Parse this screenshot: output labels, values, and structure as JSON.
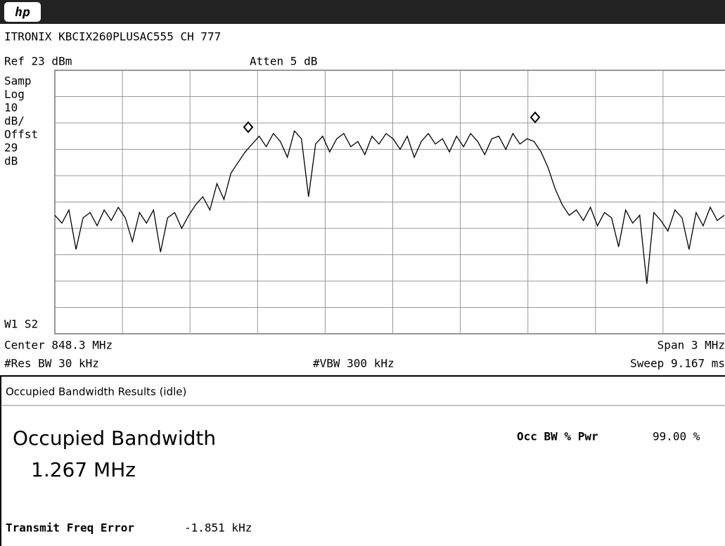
{
  "header": {
    "logo": "hp",
    "title": "ITRONIX KBCIX260PLUSAC555 CH 777"
  },
  "settings": {
    "ref": "Ref 23 dBm",
    "atten": "Atten 5 dB"
  },
  "side_labels": [
    "Samp",
    "Log",
    "10",
    "dB/",
    "Offst",
    "29",
    "dB"
  ],
  "trace_label": "W1  S2",
  "footer": {
    "center": "Center 848.3 MHz",
    "span": "Span 3 MHz",
    "rbw": "#Res BW 30 kHz",
    "vbw": "#VBW 300 kHz",
    "sweep": "Sweep 9.167 ms"
  },
  "trace": {
    "ylim": [
      -77,
      23
    ],
    "values": [
      -32,
      -35,
      -30,
      -45,
      -33,
      -31,
      -36,
      -30,
      -34,
      -29,
      -33,
      -42,
      -31,
      -35,
      -30,
      -46,
      -33,
      -31,
      -37,
      -32,
      -28,
      -25,
      -30,
      -20,
      -26,
      -16,
      -12,
      -8,
      -5,
      -2,
      -6,
      -1,
      -4,
      -10,
      0,
      -3,
      -25,
      -5,
      -2,
      -8,
      -3,
      -1,
      -6,
      -4,
      -9,
      -2,
      -5,
      -1,
      -3,
      -7,
      -2,
      -10,
      -4,
      -1,
      -5,
      -3,
      -8,
      -2,
      -6,
      -1,
      -4,
      -9,
      -3,
      -2,
      -7,
      -1,
      -5,
      -3,
      -4,
      -8,
      -14,
      -22,
      -28,
      -32,
      -30,
      -34,
      -29,
      -36,
      -31,
      -33,
      -44,
      -30,
      -35,
      -32,
      -58,
      -31,
      -34,
      -38,
      -30,
      -33,
      -45,
      -31,
      -36,
      -29,
      -34,
      -32
    ]
  },
  "results": {
    "panel_title": "Occupied Bandwidth Results (idle)",
    "heading": "Occupied Bandwidth",
    "value": "1.267 MHz",
    "pwr_label": "Occ BW % Pwr",
    "pwr_value": "99.00 %",
    "error_label": "Transmit Freq Error",
    "error_value": "-1.851 kHz"
  }
}
